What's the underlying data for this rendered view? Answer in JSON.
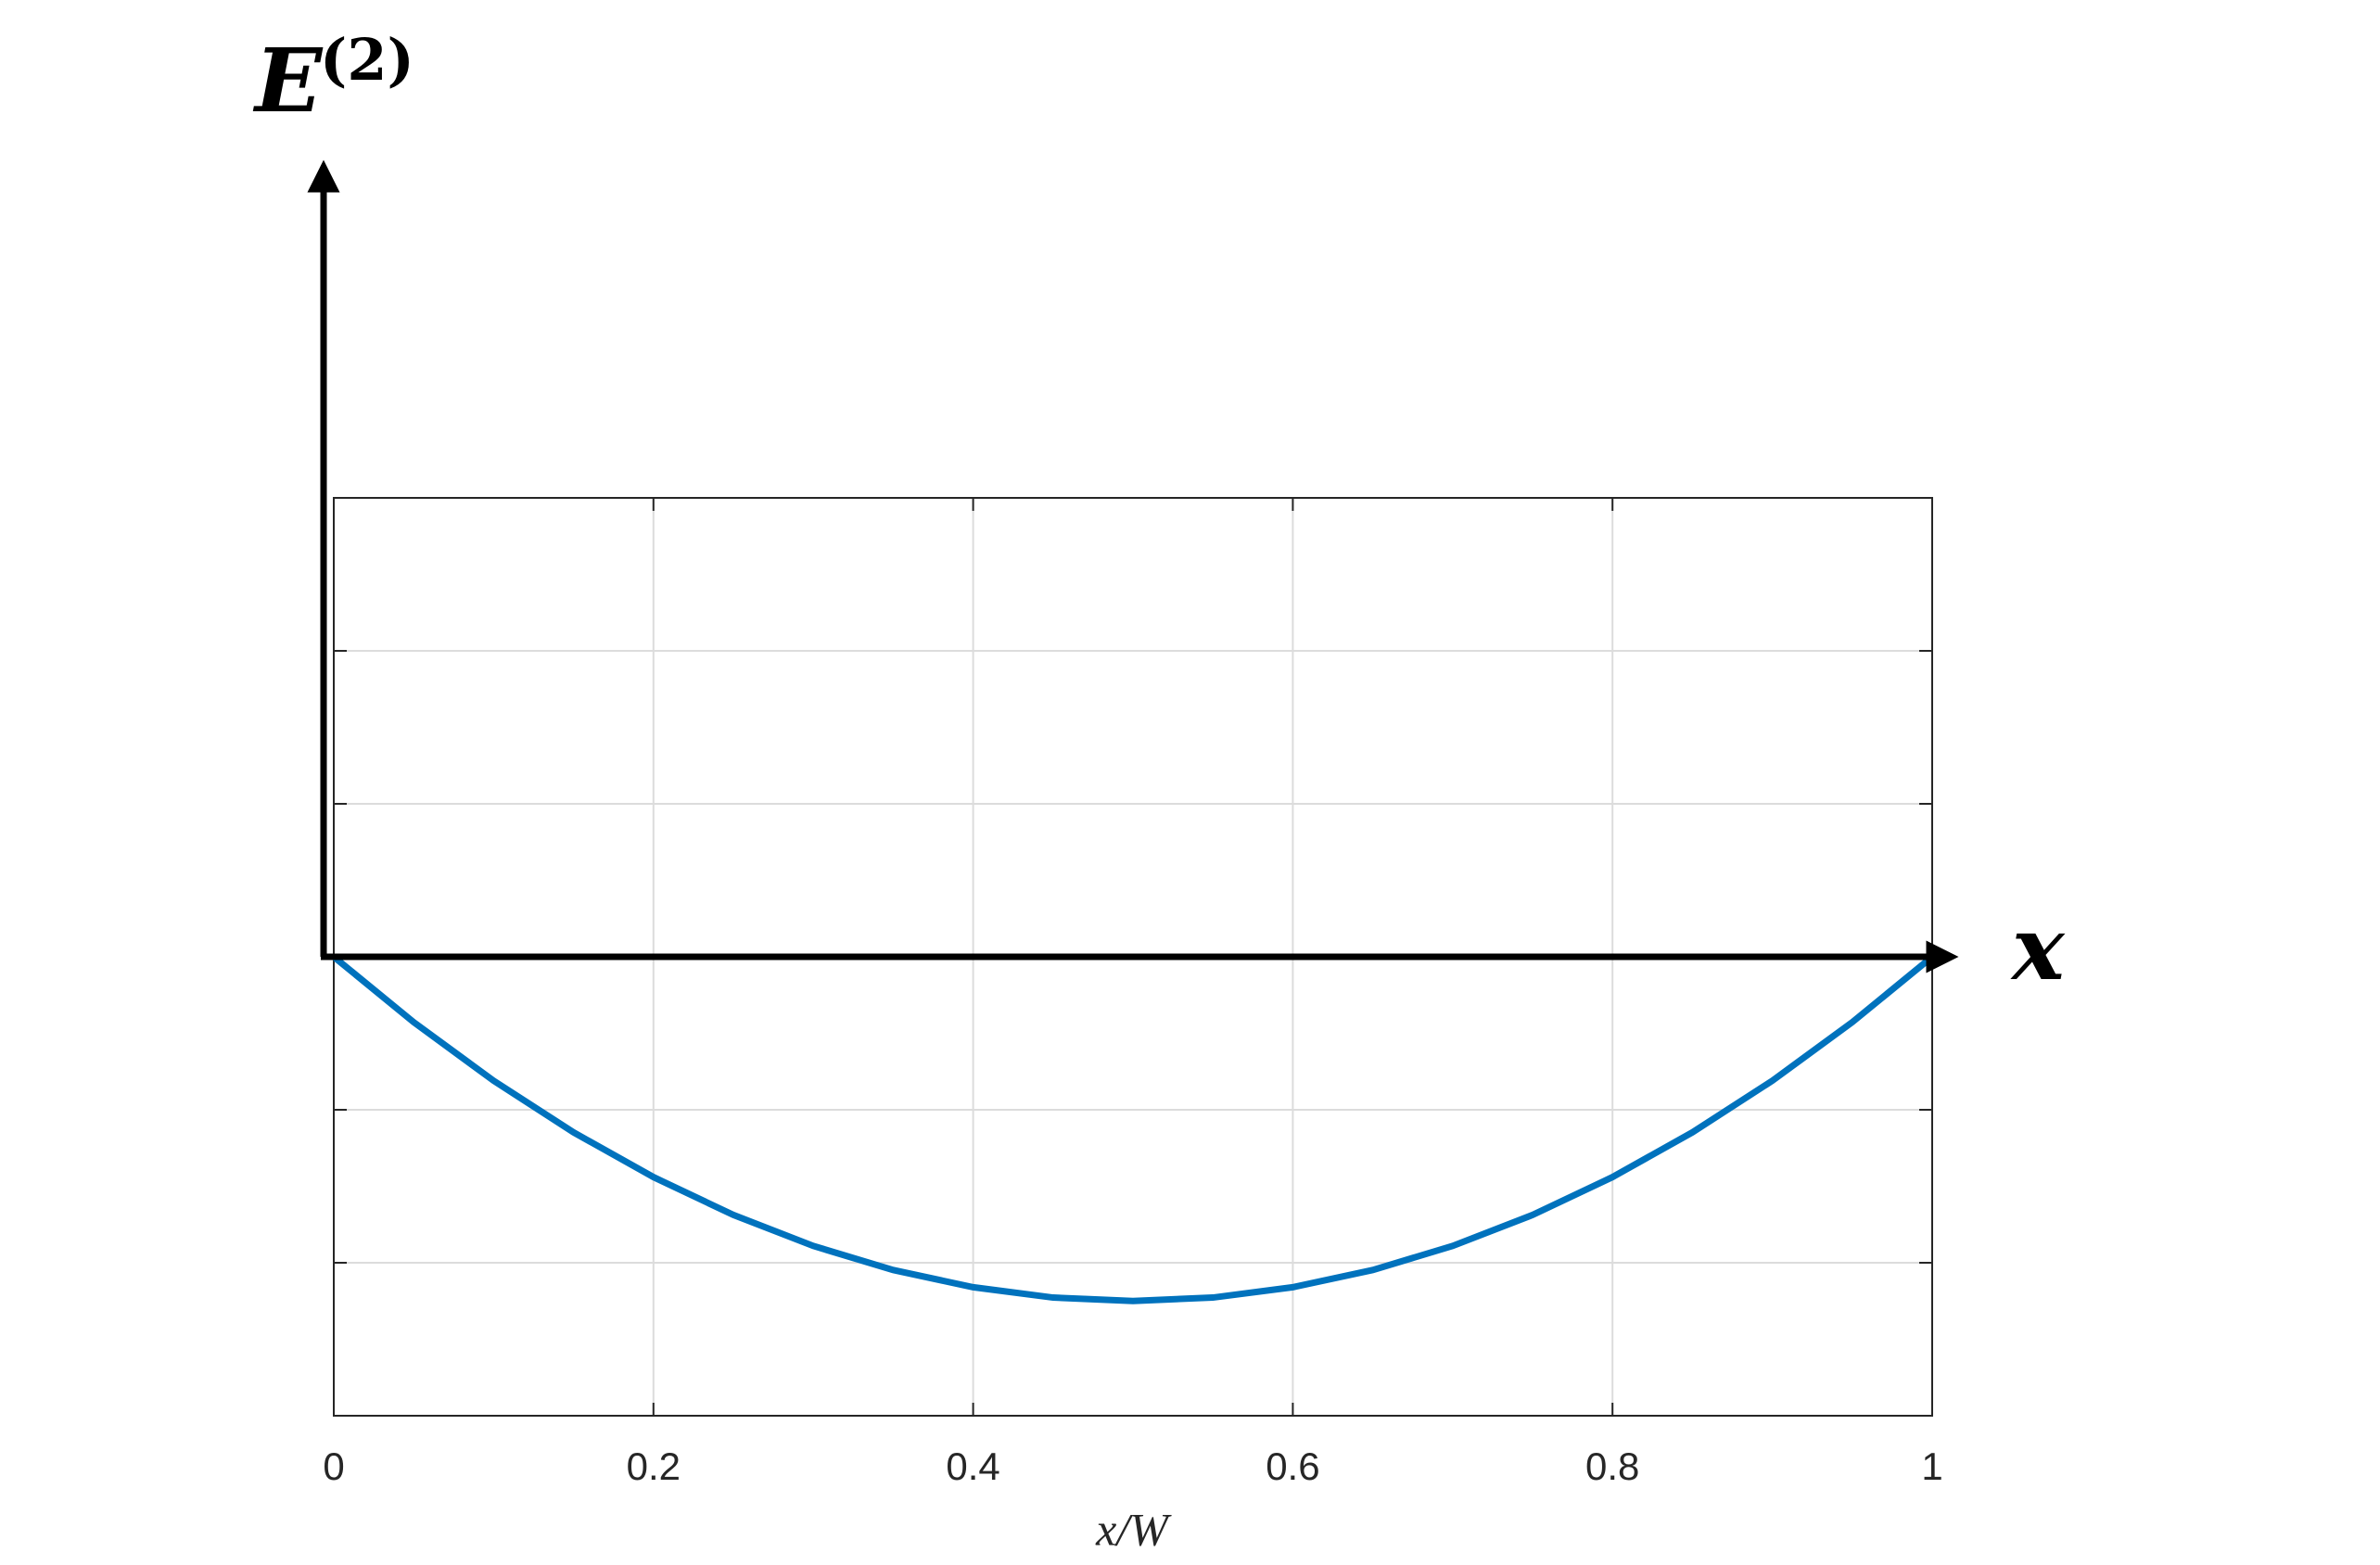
{
  "chart_data": {
    "type": "line",
    "x_label": "x/W",
    "y_arrow_label": "E",
    "y_arrow_label_sup": "(2)",
    "x_arrow_label": "x",
    "x": [
      0,
      0.05,
      0.1,
      0.15,
      0.2,
      0.25,
      0.3,
      0.35,
      0.4,
      0.45,
      0.5,
      0.55,
      0.6,
      0.65,
      0.7,
      0.75,
      0.8,
      0.85,
      0.9,
      0.95,
      1
    ],
    "series": [
      {
        "color": "#0072bd",
        "values": [
          0,
          -0.4275,
          -0.81,
          -1.1475,
          -1.44,
          -1.6875,
          -1.89,
          -2.0475,
          -2.16,
          -2.2275,
          -2.25,
          -2.2275,
          -2.16,
          -2.0475,
          -1.89,
          -1.6875,
          -1.44,
          -1.1475,
          -0.81,
          -0.4275,
          0
        ]
      }
    ],
    "xlim": [
      0,
      1
    ],
    "xticks": [
      0,
      0.2,
      0.4,
      0.6,
      0.8,
      1
    ],
    "ylim": [
      -3,
      3
    ],
    "yticks": [
      -3,
      -2,
      -1,
      0,
      1,
      2,
      3
    ],
    "yticklabels": false,
    "grid": true
  }
}
